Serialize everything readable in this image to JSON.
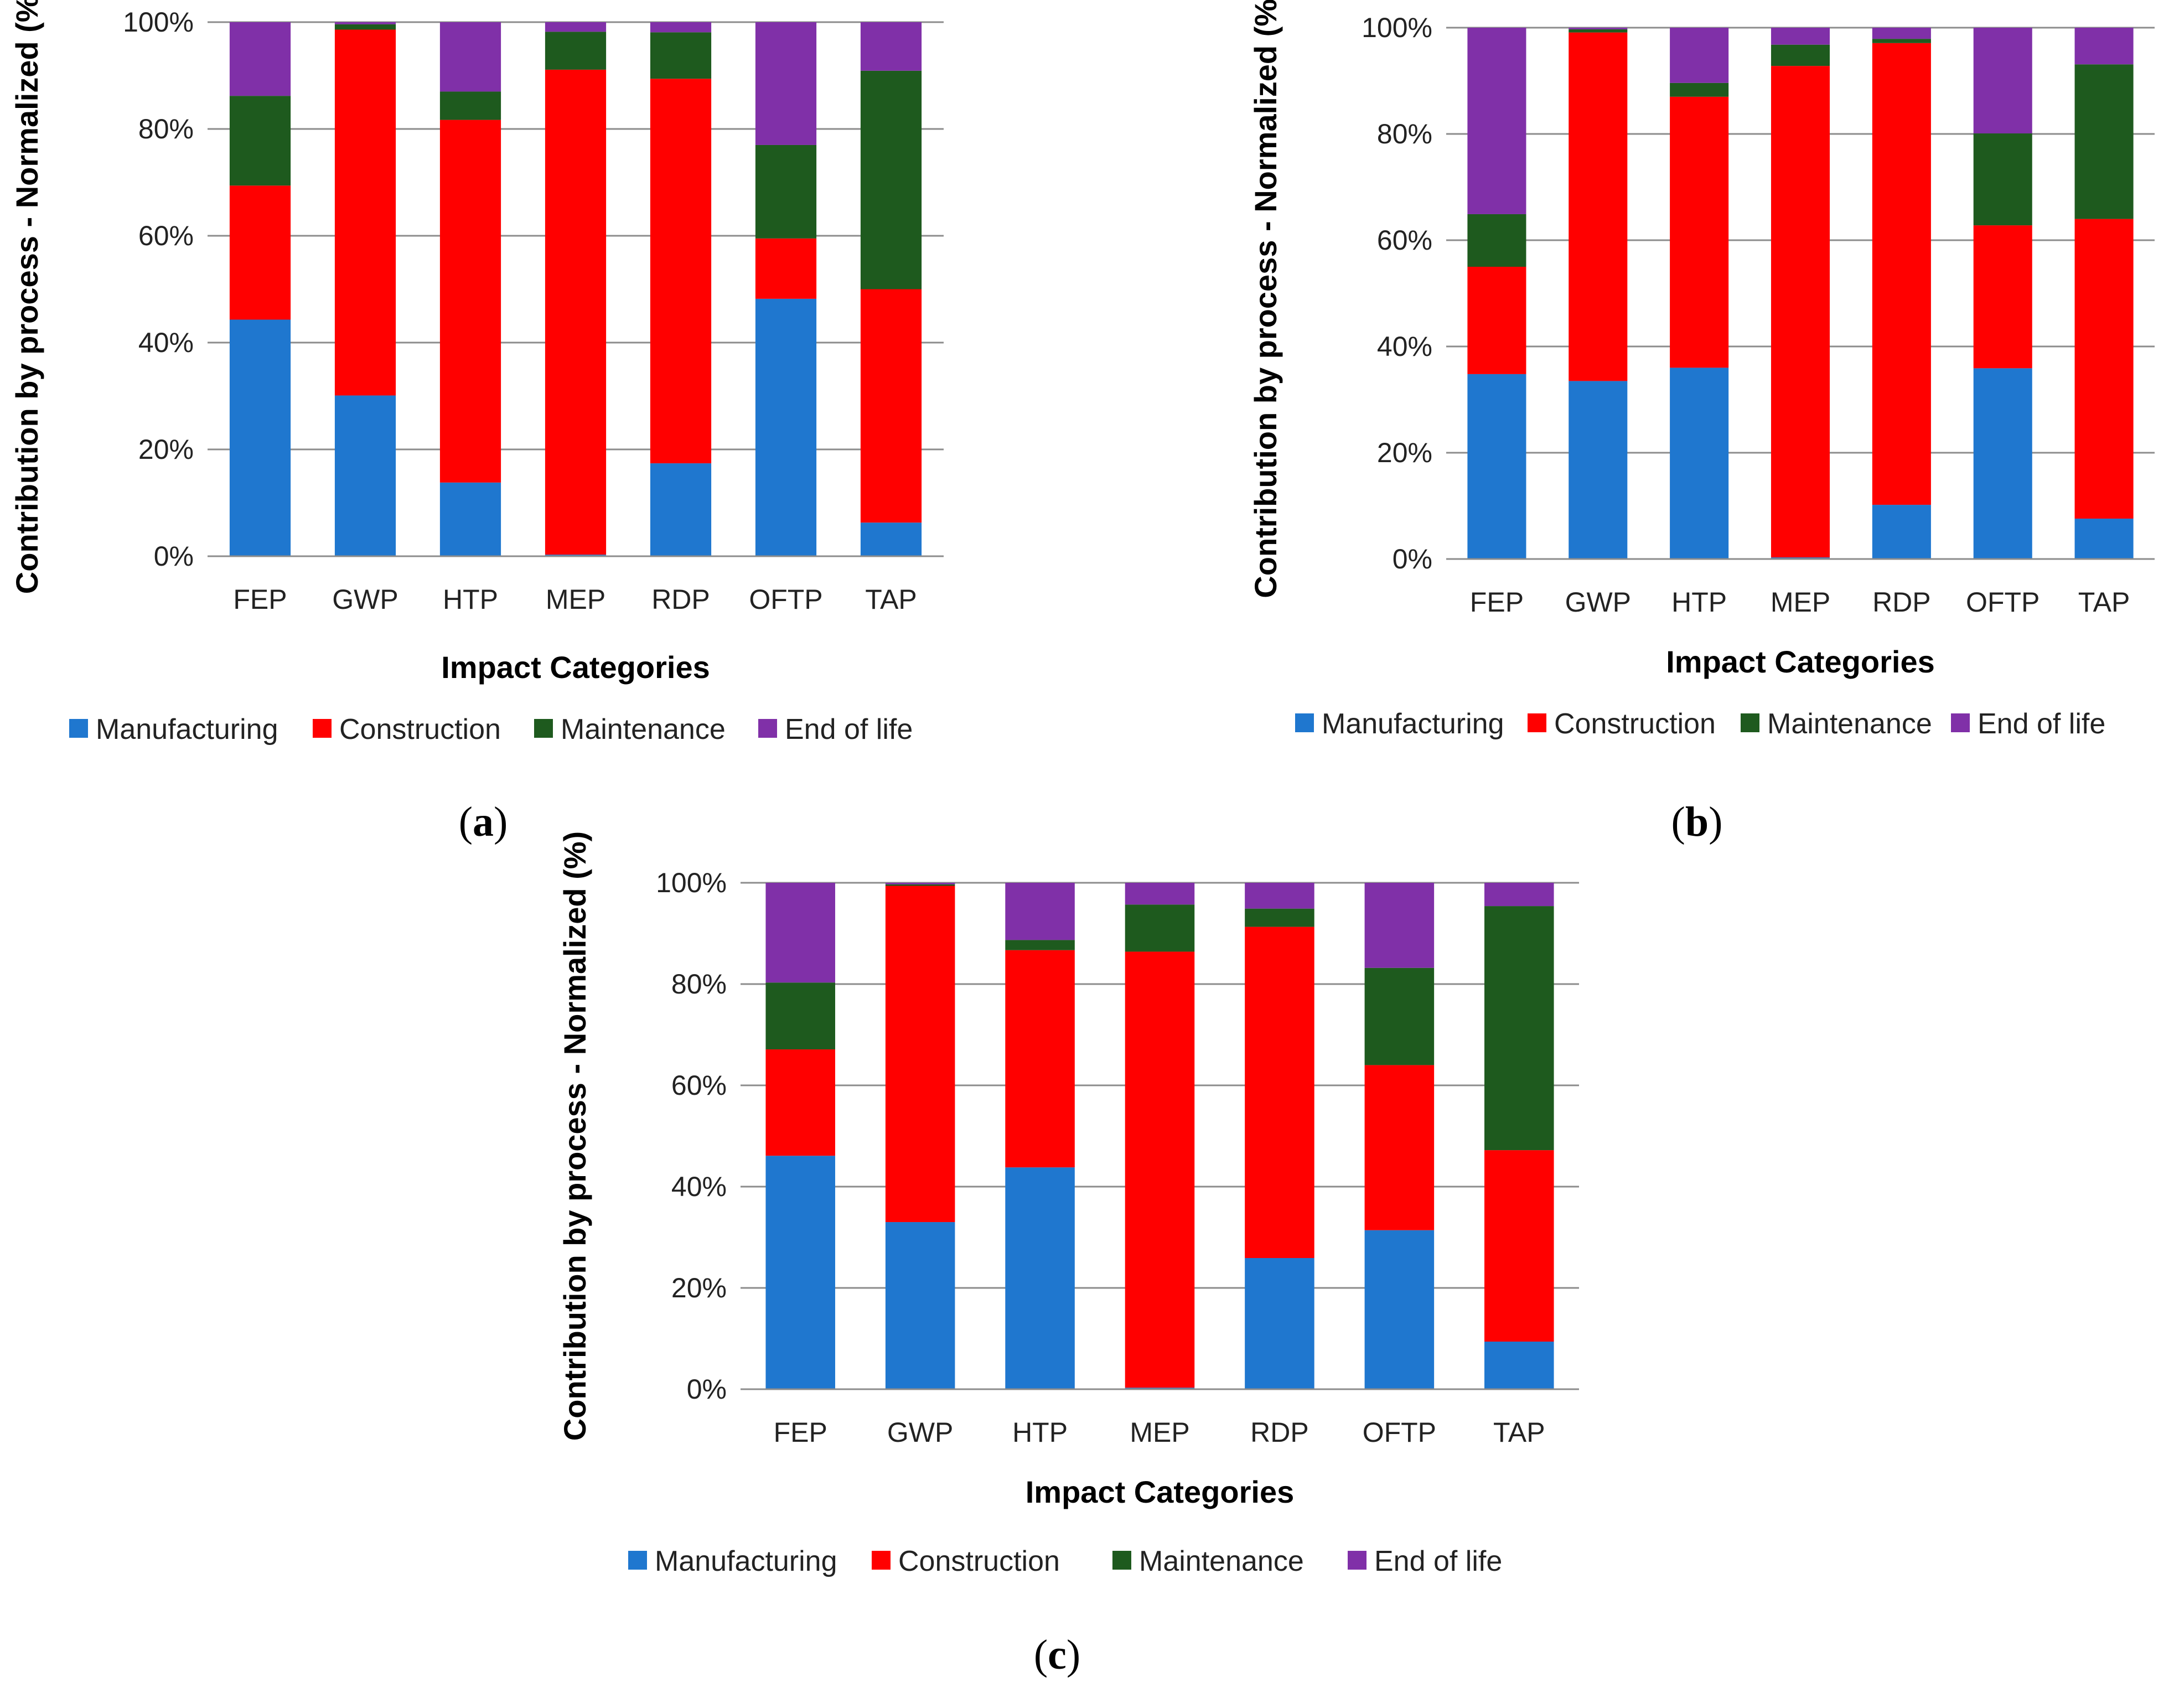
{
  "chart_data": [
    {
      "id": "a",
      "type": "bar",
      "stacked": true,
      "panel_label": "a",
      "title": "",
      "xlabel": "Impact Categories",
      "ylabel": "Contribution by process - Normalized   (%)",
      "ylim": [
        0,
        100
      ],
      "yticks": [
        "0%",
        "20%",
        "40%",
        "60%",
        "80%",
        "100%"
      ],
      "categories": [
        "FEP",
        "GWP",
        "HTP",
        "MEP",
        "RDP",
        "OFTP",
        "TAP"
      ],
      "series": [
        {
          "name": "Manufacturing",
          "color": "#1f77cf",
          "values": [
            44.3,
            30.1,
            13.8,
            0.3,
            17.4,
            48.2,
            6.3
          ]
        },
        {
          "name": "Construction",
          "color": "#ff0000",
          "values": [
            25.1,
            68.5,
            67.9,
            90.8,
            72.0,
            11.3,
            43.7
          ]
        },
        {
          "name": "Maintenance",
          "color": "#1e5a1e",
          "values": [
            16.8,
            1.0,
            5.3,
            7.1,
            8.7,
            17.5,
            40.9
          ]
        },
        {
          "name": "End of life",
          "color": "#8030a8",
          "values": [
            13.8,
            0.4,
            13.0,
            1.8,
            1.9,
            23.0,
            9.1
          ]
        }
      ],
      "legend_position": "bottom"
    },
    {
      "id": "b",
      "type": "bar",
      "stacked": true,
      "panel_label": "b",
      "title": "",
      "xlabel": "Impact Categories",
      "ylabel": "Contribution by process - Normalized   (%)",
      "ylim": [
        0,
        100
      ],
      "yticks": [
        "0%",
        "20%",
        "40%",
        "60%",
        "80%",
        "100%"
      ],
      "categories": [
        "FEP",
        "GWP",
        "HTP",
        "MEP",
        "RDP",
        "OFTP",
        "TAP"
      ],
      "series": [
        {
          "name": "Manufacturing",
          "color": "#1f77cf",
          "values": [
            34.8,
            33.5,
            36.0,
            0.3,
            10.2,
            35.9,
            7.6
          ]
        },
        {
          "name": "Construction",
          "color": "#ff0000",
          "values": [
            20.2,
            65.6,
            51.0,
            92.5,
            86.9,
            26.9,
            56.4
          ]
        },
        {
          "name": "Maintenance",
          "color": "#1e5a1e",
          "values": [
            9.9,
            0.6,
            2.6,
            4.0,
            0.8,
            17.3,
            29.1
          ]
        },
        {
          "name": "End of life",
          "color": "#8030a8",
          "values": [
            35.1,
            0.3,
            10.4,
            3.2,
            2.1,
            19.9,
            6.9
          ]
        }
      ],
      "legend_position": "bottom"
    },
    {
      "id": "c",
      "type": "bar",
      "stacked": true,
      "panel_label": "c",
      "title": "",
      "xlabel": "Impact Categories",
      "ylabel": "Contribution by process - Normalized   (%)",
      "ylim": [
        0,
        100
      ],
      "yticks": [
        "0%",
        "20%",
        "40%",
        "60%",
        "80%",
        "100%"
      ],
      "categories": [
        "FEP",
        "GWP",
        "HTP",
        "MEP",
        "RDP",
        "OFTP",
        "TAP"
      ],
      "series": [
        {
          "name": "Manufacturing",
          "color": "#1f77cf",
          "values": [
            46.1,
            33.0,
            43.8,
            0.3,
            25.9,
            31.4,
            9.4
          ]
        },
        {
          "name": "Construction",
          "color": "#ff0000",
          "values": [
            21.0,
            66.4,
            42.9,
            86.1,
            65.4,
            32.6,
            37.8
          ]
        },
        {
          "name": "Maintenance",
          "color": "#1e5a1e",
          "values": [
            13.2,
            0.3,
            2.0,
            9.3,
            3.6,
            19.2,
            48.2
          ]
        },
        {
          "name": "End of life",
          "color": "#8030a8",
          "values": [
            19.7,
            0.3,
            11.3,
            4.3,
            5.1,
            16.8,
            4.6
          ]
        }
      ],
      "legend_position": "bottom"
    }
  ]
}
